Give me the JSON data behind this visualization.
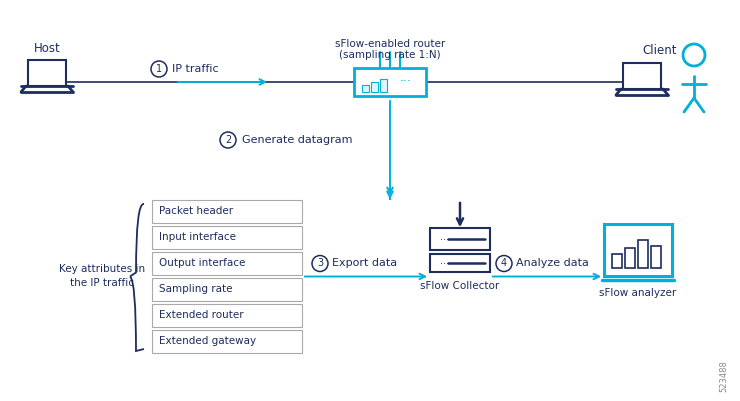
{
  "bg_color": "#ffffff",
  "dark_blue": "#1c2d5e",
  "cyan": "#00b0d8",
  "gray_border": "#aaaaaa",
  "host_label": "Host",
  "client_label": "Client",
  "router_label_line1": "sFlow-enabled router",
  "router_label_line2": "(sampling rate 1:N)",
  "collector_label": "sFlow Collector",
  "analyzer_label": "sFlow analyzer",
  "step1_label": "IP traffic",
  "step2_label": "Generate datagram",
  "step3_label": "Export data",
  "step4_label": "Analyze data",
  "key_attr_line1": "Key attributes in",
  "key_attr_line2": "the IP traffic",
  "attributes": [
    "Packet header",
    "Input interface",
    "Output interface",
    "Sampling rate",
    "Extended router",
    "Extended gateway"
  ],
  "watermark": "523488",
  "fig_w": 7.4,
  "fig_h": 4.01,
  "dpi": 100
}
